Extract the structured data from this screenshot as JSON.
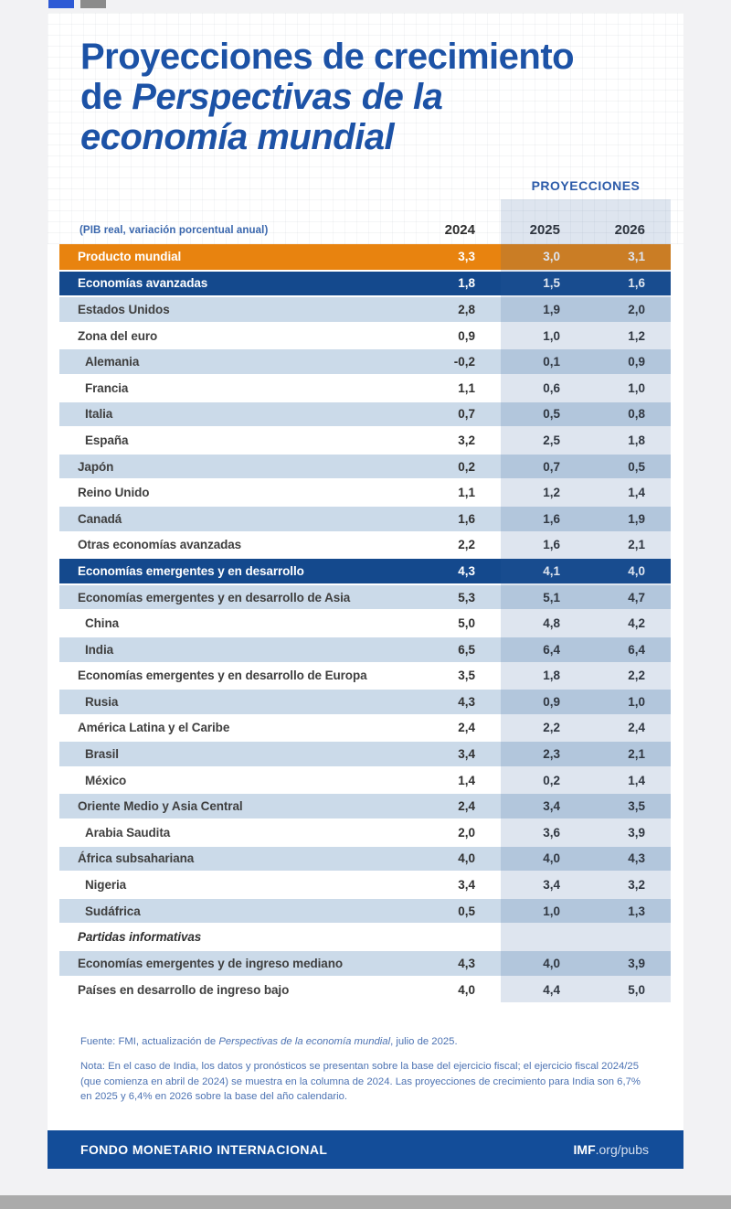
{
  "header": {
    "title": {
      "line1": "Proyecciones de crecimiento",
      "line2_regular": "de ",
      "line2_italic": "Perspectivas de la",
      "line3_italic": "economía mundial"
    },
    "projections_label": "PROYECCIONES",
    "subtitle": "(PIB real, variación porcentual anual)"
  },
  "chart_data": {
    "type": "table",
    "title": "Proyecciones de crecimiento de Perspectivas de la economía mundial",
    "subtitle": "(PIB real, variación porcentual anual)",
    "columns": [
      "2024",
      "2025",
      "2026"
    ],
    "projection_columns": [
      "2025",
      "2026"
    ],
    "rows": [
      {
        "label": "Producto mundial",
        "values": [
          3.3,
          3.0,
          3.1
        ],
        "style": "orange-header",
        "indent": 0
      },
      {
        "label": "Economías avanzadas",
        "values": [
          1.8,
          1.5,
          1.6
        ],
        "style": "blue-header",
        "indent": 0
      },
      {
        "label": "Estados Unidos",
        "values": [
          2.8,
          1.9,
          2.0
        ],
        "style": "data",
        "indent": 0
      },
      {
        "label": "Zona del euro",
        "values": [
          0.9,
          1.0,
          1.2
        ],
        "style": "data",
        "indent": 0
      },
      {
        "label": "Alemania",
        "values": [
          -0.2,
          0.1,
          0.9
        ],
        "style": "data",
        "indent": 1
      },
      {
        "label": "Francia",
        "values": [
          1.1,
          0.6,
          1.0
        ],
        "style": "data",
        "indent": 1
      },
      {
        "label": "Italia",
        "values": [
          0.7,
          0.5,
          0.8
        ],
        "style": "data",
        "indent": 1
      },
      {
        "label": "España",
        "values": [
          3.2,
          2.5,
          1.8
        ],
        "style": "data",
        "indent": 1
      },
      {
        "label": "Japón",
        "values": [
          0.2,
          0.7,
          0.5
        ],
        "style": "data",
        "indent": 0
      },
      {
        "label": "Reino Unido",
        "values": [
          1.1,
          1.2,
          1.4
        ],
        "style": "data",
        "indent": 0
      },
      {
        "label": "Canadá",
        "values": [
          1.6,
          1.6,
          1.9
        ],
        "style": "data",
        "indent": 0
      },
      {
        "label": "Otras economías avanzadas",
        "values": [
          2.2,
          1.6,
          2.1
        ],
        "style": "data",
        "indent": 0
      },
      {
        "label": "Economías emergentes y en desarrollo",
        "values": [
          4.3,
          4.1,
          4.0
        ],
        "style": "blue-header",
        "indent": 0
      },
      {
        "label": "Economías emergentes y en desarrollo de Asia",
        "values": [
          5.3,
          5.1,
          4.7
        ],
        "style": "data",
        "indent": 0
      },
      {
        "label": "China",
        "values": [
          5.0,
          4.8,
          4.2
        ],
        "style": "data",
        "indent": 1
      },
      {
        "label": "India",
        "values": [
          6.5,
          6.4,
          6.4
        ],
        "style": "data",
        "indent": 1
      },
      {
        "label": "Economías emergentes y en desarrollo de Europa",
        "values": [
          3.5,
          1.8,
          2.2
        ],
        "style": "data",
        "indent": 0
      },
      {
        "label": "Rusia",
        "values": [
          4.3,
          0.9,
          1.0
        ],
        "style": "data",
        "indent": 1
      },
      {
        "label": "América Latina y el Caribe",
        "values": [
          2.4,
          2.2,
          2.4
        ],
        "style": "data",
        "indent": 0
      },
      {
        "label": "Brasil",
        "values": [
          3.4,
          2.3,
          2.1
        ],
        "style": "data",
        "indent": 1
      },
      {
        "label": "México",
        "values": [
          1.4,
          0.2,
          1.4
        ],
        "style": "data",
        "indent": 1
      },
      {
        "label": "Oriente Medio y Asia Central",
        "values": [
          2.4,
          3.4,
          3.5
        ],
        "style": "data",
        "indent": 0
      },
      {
        "label": "Arabia Saudita",
        "values": [
          2.0,
          3.6,
          3.9
        ],
        "style": "data",
        "indent": 1
      },
      {
        "label": "África subsahariana",
        "values": [
          4.0,
          4.0,
          4.3
        ],
        "style": "data",
        "indent": 0
      },
      {
        "label": "Nigeria",
        "values": [
          3.4,
          3.4,
          3.2
        ],
        "style": "data",
        "indent": 1
      },
      {
        "label": "Sudáfrica",
        "values": [
          0.5,
          1.0,
          1.3
        ],
        "style": "data",
        "indent": 1
      },
      {
        "label": "Partidas informativas",
        "values": [],
        "style": "memo",
        "indent": 0
      },
      {
        "label": "Economías emergentes y de ingreso mediano",
        "values": [
          4.3,
          4.0,
          3.9
        ],
        "style": "data",
        "indent": 0
      },
      {
        "label": "Países en desarrollo de ingreso bajo",
        "values": [
          4.0,
          4.4,
          5.0
        ],
        "style": "data",
        "indent": 0
      }
    ],
    "decimal_separator": ",",
    "legend_position": "none",
    "grid": false
  },
  "notes": {
    "fuente_prefix": "Fuente: FMI, actualización de ",
    "fuente_italic": "Perspectivas de la economía mundial",
    "fuente_suffix": ", julio de 2025.",
    "nota": "Nota: En el caso de India, los datos y pronósticos se presentan sobre la base del ejercicio fiscal; el ejercicio fiscal 2024/25 (que comienza en abril de 2024) se muestra en la columna de 2024. Las proyecciones de crecimiento para India son 6,7% en 2025 y 6,4% en 2026 sobre la base del año calendario."
  },
  "footer": {
    "org": "FONDO MONETARIO INTERNACIONAL",
    "url_bold": "IMF",
    "url_rest": ".org/pubs"
  },
  "colors": {
    "title_blue": "#1c52a6",
    "accent_orange": "#e8830f",
    "group_row_blue": "#14498d",
    "zebra_light_blue": "#cbdae9",
    "projection_band_tint": "rgba(47,92,153,0.16)",
    "footer_bar_blue": "#134d99",
    "note_text_blue": "#4d73b3"
  }
}
